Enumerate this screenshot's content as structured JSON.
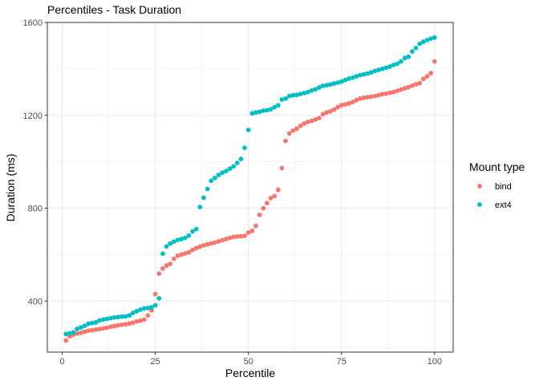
{
  "chart_data": {
    "type": "scatter",
    "title": "Percentiles - Task Duration",
    "xlabel": "Percentile",
    "ylabel": "Duration (ms)",
    "xlim": [
      -4,
      105
    ],
    "ylim": [
      180,
      1600
    ],
    "x_ticks": [
      0,
      25,
      50,
      75,
      100
    ],
    "y_ticks": [
      400,
      800,
      1200,
      1600
    ],
    "grid": true,
    "legend": {
      "title": "Mount type",
      "position": "right"
    },
    "series": [
      {
        "name": "bind",
        "color": "#F8766D",
        "x": [
          1,
          2,
          3,
          4,
          5,
          6,
          7,
          8,
          9,
          10,
          11,
          12,
          13,
          14,
          15,
          16,
          17,
          18,
          19,
          20,
          21,
          22,
          23,
          24,
          25,
          26,
          27,
          28,
          29,
          30,
          31,
          32,
          33,
          34,
          35,
          36,
          37,
          38,
          39,
          40,
          41,
          42,
          43,
          44,
          45,
          46,
          47,
          48,
          49,
          50,
          51,
          52,
          53,
          54,
          55,
          56,
          57,
          58,
          59,
          60,
          61,
          62,
          63,
          64,
          65,
          66,
          67,
          68,
          69,
          70,
          71,
          72,
          73,
          74,
          75,
          76,
          77,
          78,
          79,
          80,
          81,
          82,
          83,
          84,
          85,
          86,
          87,
          88,
          89,
          90,
          91,
          92,
          93,
          94,
          95,
          96,
          97,
          98,
          99,
          100
        ],
        "values": [
          230,
          248,
          255,
          260,
          263,
          268,
          272,
          274,
          277,
          279,
          282,
          285,
          289,
          292,
          295,
          298,
          300,
          303,
          307,
          312,
          315,
          320,
          338,
          360,
          430,
          518,
          540,
          553,
          560,
          582,
          595,
          600,
          605,
          610,
          620,
          628,
          634,
          640,
          644,
          648,
          652,
          657,
          662,
          667,
          672,
          676,
          678,
          679,
          681,
          695,
          702,
          724,
          771,
          800,
          822,
          843,
          852,
          879,
          973,
          1090,
          1122,
          1134,
          1143,
          1155,
          1165,
          1172,
          1176,
          1182,
          1188,
          1205,
          1212,
          1217,
          1225,
          1235,
          1244,
          1247,
          1251,
          1257,
          1265,
          1272,
          1276,
          1278,
          1280,
          1283,
          1287,
          1291,
          1293,
          1297,
          1300,
          1306,
          1311,
          1316,
          1321,
          1328,
          1334,
          1338,
          1357,
          1368,
          1382,
          1432
        ]
      },
      {
        "name": "ext4",
        "color": "#00BFC4",
        "x": [
          1,
          2,
          3,
          4,
          5,
          6,
          7,
          8,
          9,
          10,
          11,
          12,
          13,
          14,
          15,
          16,
          17,
          18,
          19,
          20,
          21,
          22,
          23,
          24,
          25,
          26,
          27,
          28,
          29,
          30,
          31,
          32,
          33,
          34,
          35,
          36,
          37,
          38,
          39,
          40,
          41,
          42,
          43,
          44,
          45,
          46,
          47,
          48,
          49,
          50,
          51,
          52,
          53,
          54,
          55,
          56,
          57,
          58,
          59,
          60,
          61,
          62,
          63,
          64,
          65,
          66,
          67,
          68,
          69,
          70,
          71,
          72,
          73,
          74,
          75,
          76,
          77,
          78,
          79,
          80,
          81,
          82,
          83,
          84,
          85,
          86,
          87,
          88,
          89,
          90,
          91,
          92,
          93,
          94,
          95,
          96,
          97,
          98,
          99,
          100
        ],
        "values": [
          258,
          261,
          265,
          280,
          286,
          293,
          302,
          305,
          308,
          316,
          320,
          323,
          326,
          329,
          331,
          333,
          334,
          338,
          349,
          356,
          363,
          368,
          370,
          373,
          382,
          412,
          604,
          635,
          648,
          656,
          663,
          667,
          672,
          682,
          700,
          710,
          805,
          845,
          883,
          918,
          930,
          943,
          953,
          960,
          970,
          980,
          995,
          1012,
          1060,
          1137,
          1208,
          1212,
          1215,
          1220,
          1222,
          1226,
          1235,
          1243,
          1268,
          1272,
          1283,
          1286,
          1288,
          1292,
          1296,
          1300,
          1307,
          1312,
          1320,
          1327,
          1330,
          1333,
          1337,
          1341,
          1345,
          1352,
          1358,
          1362,
          1368,
          1373,
          1376,
          1380,
          1385,
          1391,
          1396,
          1400,
          1405,
          1410,
          1417,
          1422,
          1432,
          1447,
          1452,
          1475,
          1490,
          1508,
          1517,
          1524,
          1530,
          1535
        ]
      }
    ]
  }
}
